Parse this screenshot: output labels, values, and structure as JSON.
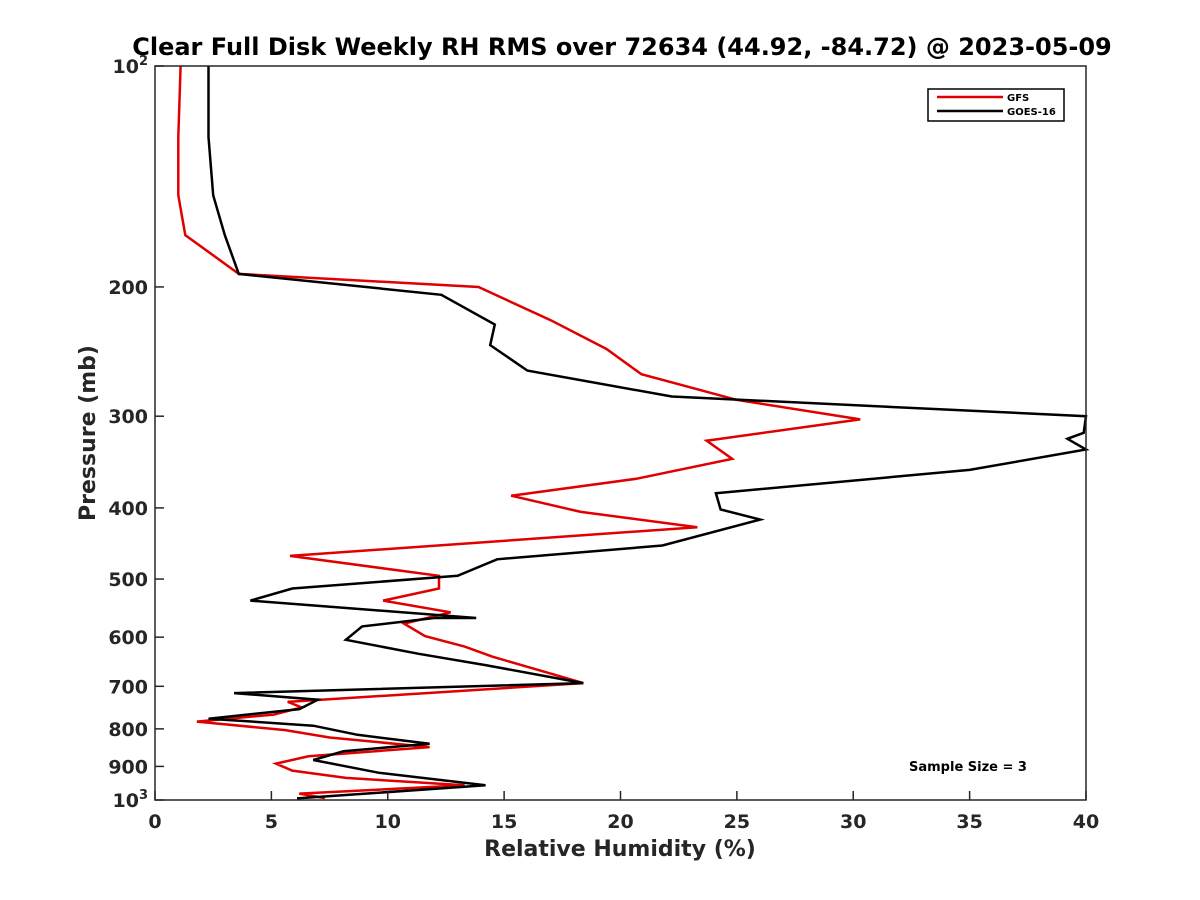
{
  "chart_data": {
    "type": "line",
    "title": "Clear Full Disk Weekly RH RMS over 72634 (44.92, -84.72) @ 2023-05-09",
    "xlabel": "Relative Humidity (%)",
    "ylabel": "Pressure (mb)",
    "xlim": [
      0,
      40
    ],
    "ylim": [
      100,
      1000
    ],
    "yscale": "log",
    "y_reversed": true,
    "xticks": [
      0,
      5,
      10,
      15,
      20,
      25,
      30,
      35,
      40
    ],
    "yticks": [
      {
        "value": 100,
        "base": "10",
        "exp": "2"
      },
      {
        "value": 200,
        "label": "200"
      },
      {
        "value": 300,
        "label": "300"
      },
      {
        "value": 400,
        "label": "400"
      },
      {
        "value": 500,
        "label": "500"
      },
      {
        "value": 600,
        "label": "600"
      },
      {
        "value": 700,
        "label": "700"
      },
      {
        "value": 800,
        "label": "800"
      },
      {
        "value": 900,
        "label": "900"
      },
      {
        "value": 1000,
        "base": "10",
        "exp": "3"
      }
    ],
    "legend_position": "top-right",
    "annotation": "Sample Size = 3",
    "series": [
      {
        "name": "GFS",
        "color": "#e00000",
        "points": [
          [
            1.1,
            100
          ],
          [
            1.0,
            125
          ],
          [
            1.0,
            150
          ],
          [
            1.3,
            170
          ],
          [
            3.6,
            192
          ],
          [
            13.9,
            200
          ],
          [
            17.0,
            222
          ],
          [
            19.4,
            243
          ],
          [
            20.9,
            263
          ],
          [
            25.0,
            285
          ],
          [
            30.3,
            303
          ],
          [
            23.7,
            324
          ],
          [
            24.8,
            343
          ],
          [
            20.7,
            365
          ],
          [
            15.3,
            385
          ],
          [
            18.3,
            405
          ],
          [
            23.3,
            425
          ],
          [
            5.8,
            465
          ],
          [
            12.2,
            495
          ],
          [
            12.2,
            515
          ],
          [
            9.8,
            535
          ],
          [
            12.7,
            555
          ],
          [
            10.7,
            575
          ],
          [
            11.6,
            598
          ],
          [
            13.3,
            618
          ],
          [
            14.5,
            638
          ],
          [
            18.4,
            693
          ],
          [
            5.7,
            735
          ],
          [
            6.3,
            748
          ],
          [
            5.1,
            765
          ],
          [
            1.8,
            782
          ],
          [
            5.6,
            803
          ],
          [
            7.5,
            822
          ],
          [
            11.8,
            847
          ],
          [
            6.6,
            872
          ],
          [
            5.2,
            892
          ],
          [
            5.9,
            912
          ],
          [
            8.2,
            933
          ],
          [
            13.3,
            955
          ],
          [
            6.2,
            980
          ],
          [
            7.3,
            994
          ]
        ]
      },
      {
        "name": "GOES-16",
        "color": "#000000",
        "points": [
          [
            2.3,
            100
          ],
          [
            2.3,
            125
          ],
          [
            2.5,
            150
          ],
          [
            3.0,
            170
          ],
          [
            3.6,
            192
          ],
          [
            12.3,
            205
          ],
          [
            14.6,
            225
          ],
          [
            14.4,
            240
          ],
          [
            16.0,
            260
          ],
          [
            22.2,
            282
          ],
          [
            40.0,
            300
          ],
          [
            39.9,
            316
          ],
          [
            39.2,
            322
          ],
          [
            40.0,
            333
          ],
          [
            35.0,
            355
          ],
          [
            24.1,
            382
          ],
          [
            24.3,
            402
          ],
          [
            26.0,
            415
          ],
          [
            21.8,
            450
          ],
          [
            14.7,
            470
          ],
          [
            13.0,
            495
          ],
          [
            5.9,
            515
          ],
          [
            4.1,
            535
          ],
          [
            13.8,
            565
          ],
          [
            12.0,
            565
          ],
          [
            8.9,
            580
          ],
          [
            8.2,
            605
          ],
          [
            11.3,
            632
          ],
          [
            14.2,
            655
          ],
          [
            18.4,
            693
          ],
          [
            3.4,
            715
          ],
          [
            7.0,
            730
          ],
          [
            6.2,
            752
          ],
          [
            2.3,
            775
          ],
          [
            6.8,
            792
          ],
          [
            8.7,
            815
          ],
          [
            11.8,
            838
          ],
          [
            8.1,
            858
          ],
          [
            6.8,
            882
          ],
          [
            9.6,
            918
          ],
          [
            14.2,
            955
          ],
          [
            6.1,
            995
          ]
        ]
      }
    ]
  }
}
